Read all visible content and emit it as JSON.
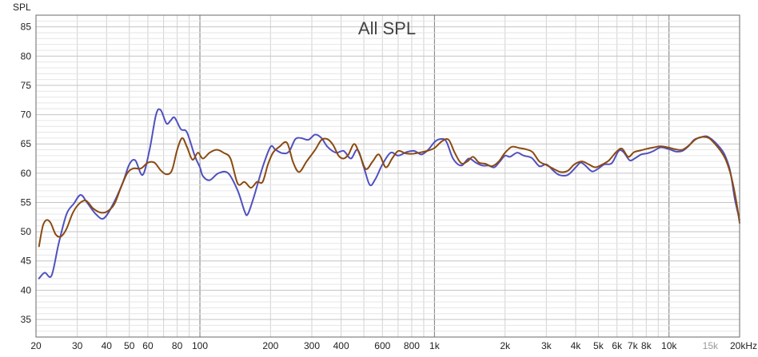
{
  "chart_data": {
    "type": "line",
    "title": "All SPL",
    "ylabel": "SPL",
    "xlabel": "",
    "x_scale": "log",
    "xlim": [
      20,
      20000
    ],
    "ylim": [
      32,
      87
    ],
    "grid": true,
    "y_ticks": [
      35,
      40,
      45,
      50,
      55,
      60,
      65,
      70,
      75,
      80,
      85
    ],
    "x_ticks": [
      {
        "value": 20,
        "label": "20"
      },
      {
        "value": 30,
        "label": "30"
      },
      {
        "value": 40,
        "label": "40"
      },
      {
        "value": 50,
        "label": "50"
      },
      {
        "value": 60,
        "label": "60"
      },
      {
        "value": 80,
        "label": "80"
      },
      {
        "value": 100,
        "label": "100"
      },
      {
        "value": 200,
        "label": "200"
      },
      {
        "value": 300,
        "label": "300"
      },
      {
        "value": 400,
        "label": "400"
      },
      {
        "value": 600,
        "label": "600"
      },
      {
        "value": 800,
        "label": "800"
      },
      {
        "value": 1000,
        "label": "1k"
      },
      {
        "value": 2000,
        "label": "2k"
      },
      {
        "value": 3000,
        "label": "3k"
      },
      {
        "value": 4000,
        "label": "4k"
      },
      {
        "value": 5000,
        "label": "5k"
      },
      {
        "value": 6000,
        "label": "6k"
      },
      {
        "value": 7000,
        "label": "7k"
      },
      {
        "value": 8000,
        "label": "8k"
      },
      {
        "value": 10000,
        "label": "10k"
      },
      {
        "value": 15000,
        "label": "15k",
        "faint": true
      },
      {
        "value": 20000,
        "label": "20kHz"
      }
    ],
    "series": [
      {
        "color": "#5050c0",
        "points": [
          [
            20.6,
            42
          ],
          [
            21.8,
            43
          ],
          [
            23.3,
            42.5
          ],
          [
            25,
            48
          ],
          [
            27,
            53
          ],
          [
            29,
            54.8
          ],
          [
            31,
            56.3
          ],
          [
            33,
            55
          ],
          [
            36,
            53
          ],
          [
            39,
            52.3
          ],
          [
            43,
            55
          ],
          [
            47,
            58.5
          ],
          [
            50,
            61.5
          ],
          [
            53,
            62.2
          ],
          [
            57,
            59.7
          ],
          [
            61,
            64
          ],
          [
            65,
            70
          ],
          [
            68,
            70.8
          ],
          [
            72,
            68.5
          ],
          [
            75,
            69
          ],
          [
            78,
            69.5
          ],
          [
            83,
            67.5
          ],
          [
            88,
            67
          ],
          [
            95,
            63
          ],
          [
            100,
            61
          ],
          [
            103,
            59.5
          ],
          [
            110,
            58.8
          ],
          [
            120,
            60
          ],
          [
            132,
            60
          ],
          [
            145,
            57
          ],
          [
            155,
            53.5
          ],
          [
            160,
            53
          ],
          [
            170,
            56
          ],
          [
            185,
            61
          ],
          [
            200,
            64.5
          ],
          [
            210,
            64
          ],
          [
            225,
            63.4
          ],
          [
            240,
            63.7
          ],
          [
            255,
            65.8
          ],
          [
            270,
            66
          ],
          [
            290,
            65.7
          ],
          [
            310,
            66.6
          ],
          [
            330,
            66
          ],
          [
            350,
            64.5
          ],
          [
            380,
            63.5
          ],
          [
            410,
            63.8
          ],
          [
            440,
            62.5
          ],
          [
            470,
            64
          ],
          [
            500,
            61
          ],
          [
            530,
            58
          ],
          [
            560,
            59
          ],
          [
            600,
            61.5
          ],
          [
            650,
            63.5
          ],
          [
            700,
            63
          ],
          [
            760,
            63.6
          ],
          [
            820,
            63.8
          ],
          [
            880,
            63.2
          ],
          [
            940,
            64
          ],
          [
            1000,
            65.3
          ],
          [
            1050,
            65.8
          ],
          [
            1120,
            65.5
          ],
          [
            1200,
            62.5
          ],
          [
            1300,
            61.3
          ],
          [
            1400,
            62.5
          ],
          [
            1500,
            61.8
          ],
          [
            1600,
            61.3
          ],
          [
            1700,
            61.3
          ],
          [
            1800,
            61
          ],
          [
            1900,
            62
          ],
          [
            2000,
            63
          ],
          [
            2100,
            62.8
          ],
          [
            2250,
            63.5
          ],
          [
            2400,
            63
          ],
          [
            2600,
            62.6
          ],
          [
            2800,
            61.2
          ],
          [
            3000,
            61.5
          ],
          [
            3200,
            60.5
          ],
          [
            3400,
            59.7
          ],
          [
            3700,
            59.7
          ],
          [
            4000,
            61
          ],
          [
            4200,
            61.8
          ],
          [
            4400,
            61.3
          ],
          [
            4700,
            60.3
          ],
          [
            5000,
            60.8
          ],
          [
            5300,
            61.5
          ],
          [
            5700,
            61.7
          ],
          [
            6100,
            63.8
          ],
          [
            6400,
            63.6
          ],
          [
            6800,
            62.2
          ],
          [
            7200,
            62.6
          ],
          [
            7600,
            63.2
          ],
          [
            8100,
            63.4
          ],
          [
            8600,
            63.8
          ],
          [
            9200,
            64.4
          ],
          [
            10000,
            64.1
          ],
          [
            10700,
            63.7
          ],
          [
            11400,
            63.8
          ],
          [
            12100,
            64.6
          ],
          [
            12800,
            65.7
          ],
          [
            13600,
            66.1
          ],
          [
            14500,
            66.3
          ],
          [
            15400,
            65.6
          ],
          [
            16300,
            64.6
          ],
          [
            17200,
            63.3
          ],
          [
            18200,
            60.5
          ],
          [
            19100,
            55.5
          ],
          [
            20000,
            52
          ]
        ]
      },
      {
        "color": "#8b4a10",
        "points": [
          [
            20.6,
            47.5
          ],
          [
            21.4,
            51
          ],
          [
            22.2,
            52
          ],
          [
            23.1,
            51.5
          ],
          [
            24.3,
            49.5
          ],
          [
            25.6,
            49.2
          ],
          [
            27,
            50.5
          ],
          [
            28.7,
            53.2
          ],
          [
            30.6,
            54.8
          ],
          [
            32.7,
            55.3
          ],
          [
            35,
            54
          ],
          [
            37.5,
            53.3
          ],
          [
            40,
            53.4
          ],
          [
            43,
            54.6
          ],
          [
            46,
            57.5
          ],
          [
            49,
            60
          ],
          [
            52,
            60.8
          ],
          [
            56,
            60.8
          ],
          [
            60,
            61.8
          ],
          [
            64,
            61.8
          ],
          [
            68,
            60.5
          ],
          [
            72,
            59.8
          ],
          [
            76,
            60.5
          ],
          [
            80,
            64
          ],
          [
            84,
            66
          ],
          [
            88,
            64.5
          ],
          [
            93,
            62.3
          ],
          [
            98,
            63.5
          ],
          [
            103,
            62.5
          ],
          [
            110,
            63.5
          ],
          [
            118,
            64
          ],
          [
            126,
            63.5
          ],
          [
            135,
            62.5
          ],
          [
            145,
            58.2
          ],
          [
            155,
            58.5
          ],
          [
            165,
            57.5
          ],
          [
            175,
            58.5
          ],
          [
            185,
            58.5
          ],
          [
            195,
            61.5
          ],
          [
            205,
            63.5
          ],
          [
            218,
            64.5
          ],
          [
            235,
            65.2
          ],
          [
            250,
            61.8
          ],
          [
            265,
            60.2
          ],
          [
            285,
            62
          ],
          [
            310,
            64
          ],
          [
            330,
            65.7
          ],
          [
            350,
            65.8
          ],
          [
            370,
            64.8
          ],
          [
            390,
            63
          ],
          [
            410,
            62.5
          ],
          [
            430,
            63.2
          ],
          [
            455,
            65
          ],
          [
            480,
            63.2
          ],
          [
            510,
            60.7
          ],
          [
            545,
            62
          ],
          [
            580,
            63.2
          ],
          [
            620,
            61
          ],
          [
            660,
            62.5
          ],
          [
            700,
            63.8
          ],
          [
            750,
            63.4
          ],
          [
            800,
            63.3
          ],
          [
            860,
            63.5
          ],
          [
            930,
            63.8
          ],
          [
            1000,
            64.3
          ],
          [
            1080,
            65.5
          ],
          [
            1150,
            65.7
          ],
          [
            1220,
            63.5
          ],
          [
            1300,
            61.7
          ],
          [
            1380,
            62
          ],
          [
            1460,
            62.8
          ],
          [
            1550,
            61.8
          ],
          [
            1650,
            61.6
          ],
          [
            1760,
            61.2
          ],
          [
            1880,
            62
          ],
          [
            2000,
            63.5
          ],
          [
            2140,
            64.5
          ],
          [
            2300,
            64.3
          ],
          [
            2450,
            64.1
          ],
          [
            2620,
            63.6
          ],
          [
            2800,
            62
          ],
          [
            3000,
            61.4
          ],
          [
            3200,
            60.8
          ],
          [
            3450,
            60.2
          ],
          [
            3700,
            60.4
          ],
          [
            3950,
            61.5
          ],
          [
            4250,
            62
          ],
          [
            4550,
            61.5
          ],
          [
            4850,
            61
          ],
          [
            5200,
            61.5
          ],
          [
            5550,
            62.2
          ],
          [
            5950,
            63.6
          ],
          [
            6300,
            64.2
          ],
          [
            6700,
            62.8
          ],
          [
            7100,
            63.6
          ],
          [
            7600,
            63.9
          ],
          [
            8100,
            64.2
          ],
          [
            8600,
            64.4
          ],
          [
            9200,
            64.6
          ],
          [
            9900,
            64.4
          ],
          [
            10600,
            64.1
          ],
          [
            11400,
            64
          ],
          [
            12200,
            64.8
          ],
          [
            13000,
            65.8
          ],
          [
            13900,
            66.2
          ],
          [
            14800,
            66
          ],
          [
            15700,
            65
          ],
          [
            16600,
            63.8
          ],
          [
            17500,
            62.2
          ],
          [
            18400,
            59.5
          ],
          [
            19300,
            55.5
          ],
          [
            20000,
            51.5
          ]
        ]
      }
    ]
  }
}
